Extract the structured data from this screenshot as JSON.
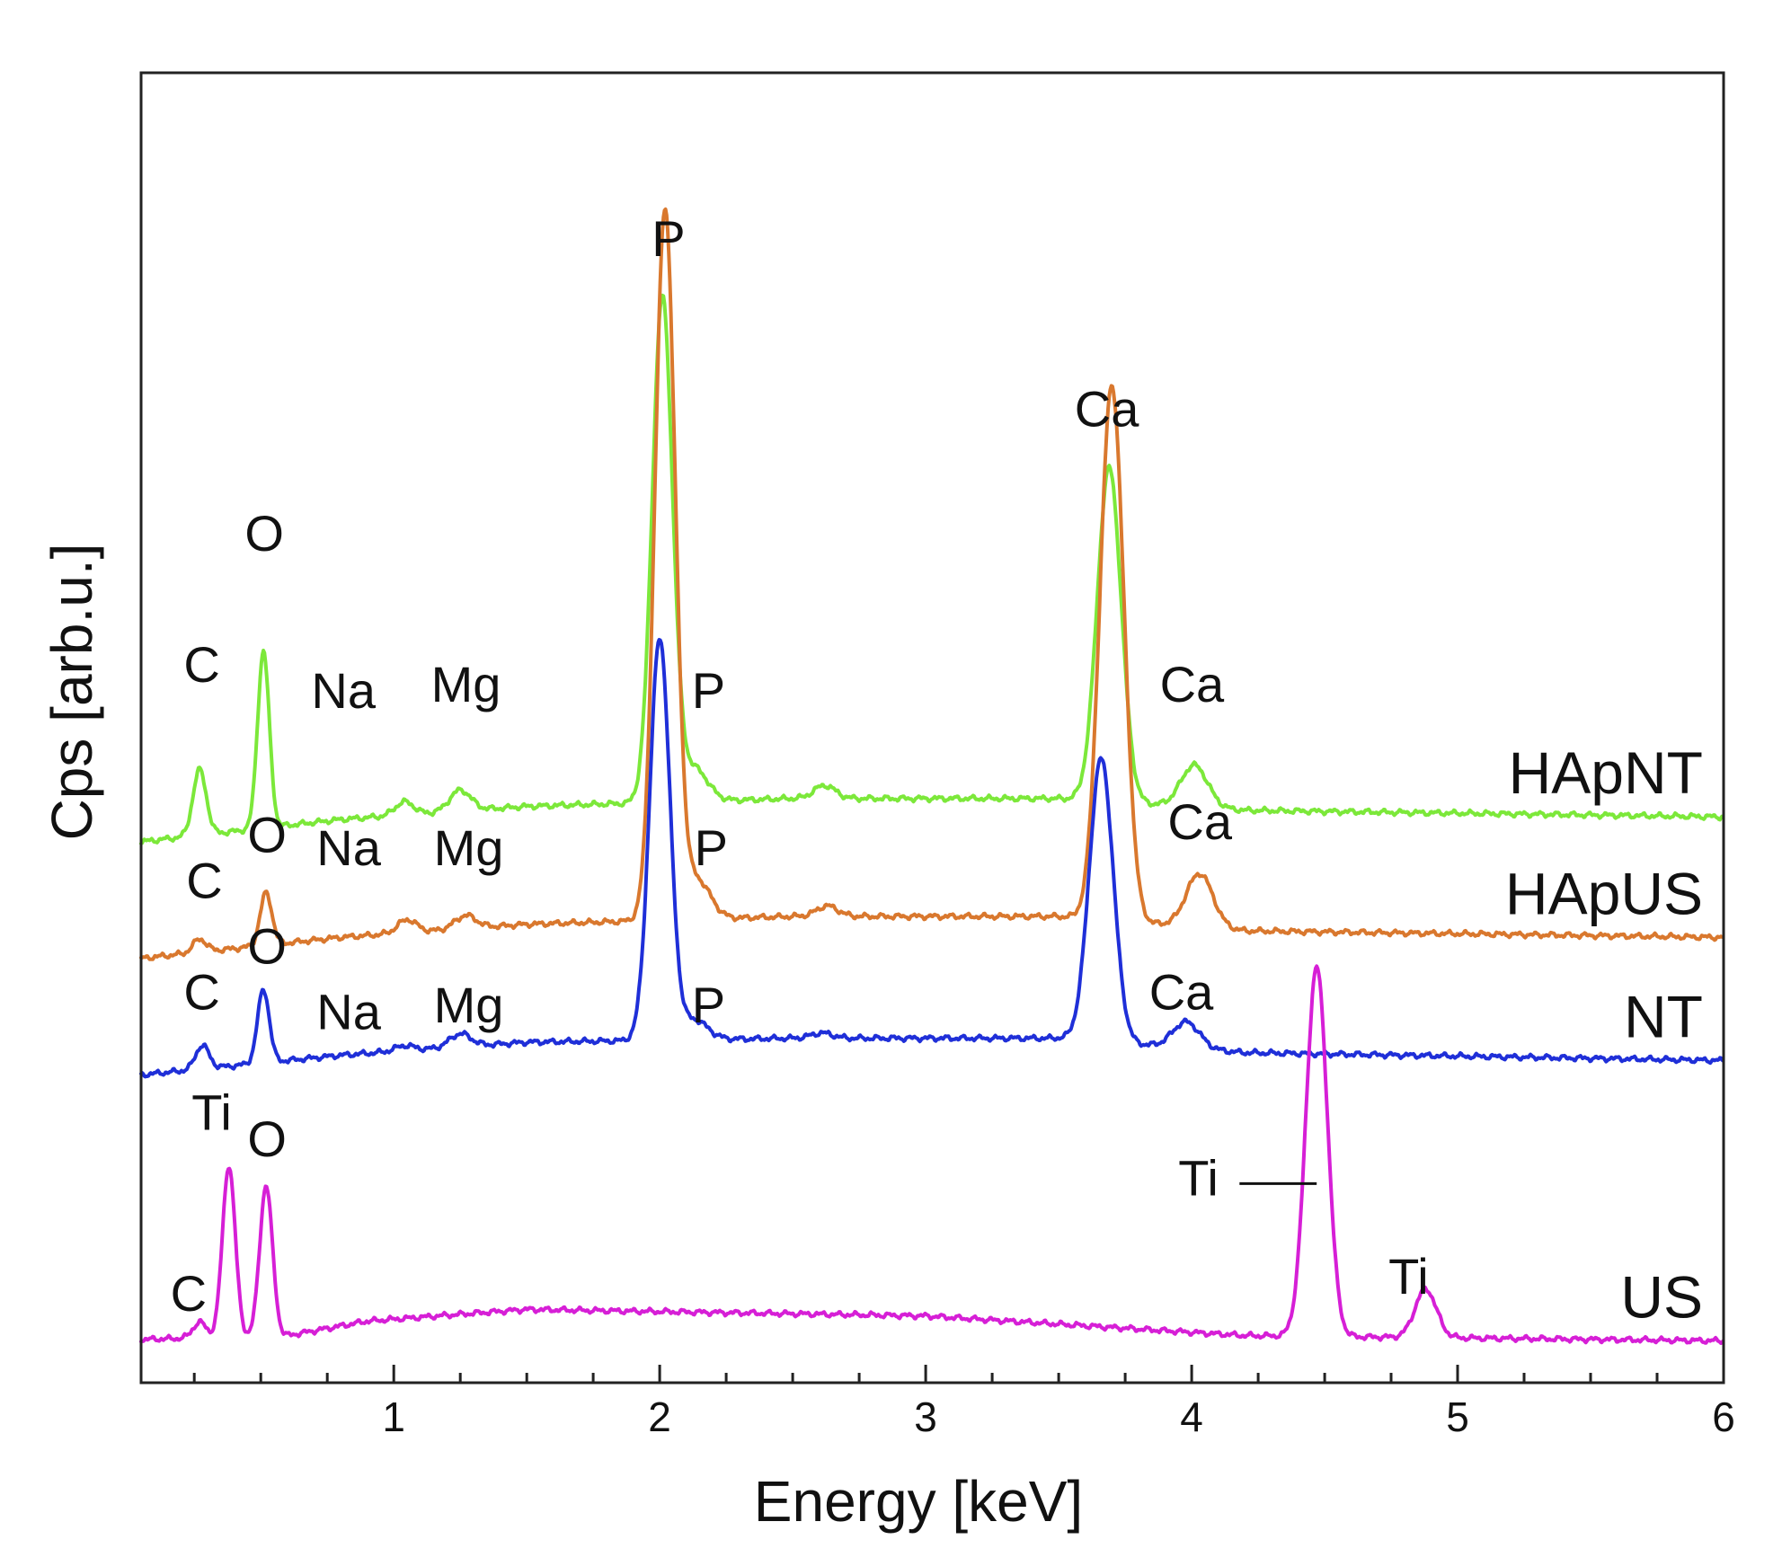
{
  "chart_data": {
    "type": "line",
    "title": "",
    "xlabel": "Energy [keV]",
    "ylabel": "Cps [arb.u.]",
    "xlim": [
      0.05,
      6.0
    ],
    "ylim": [
      0,
      100
    ],
    "x_ticks": [
      1,
      2,
      3,
      4,
      5,
      6
    ],
    "x_tick_labels": [
      "1",
      "2",
      "3",
      "4",
      "5",
      "6"
    ],
    "x_minor_step": 0.25,
    "grid": false,
    "legend": "series names printed at right end of each trace",
    "series": [
      {
        "name": "HApNT",
        "color": "#7CE83A",
        "baseline": [
          [
            0.05,
            41.3
          ],
          [
            0.8,
            43.0
          ],
          [
            1.5,
            44.0
          ],
          [
            2.5,
            44.6
          ],
          [
            3.5,
            44.6
          ],
          [
            4.2,
            43.7
          ],
          [
            6.0,
            43.2
          ]
        ],
        "peaks": [
          {
            "x": 0.27,
            "height": 5.0,
            "width": 0.025
          },
          {
            "x": 0.51,
            "height": 13.5,
            "width": 0.022
          },
          {
            "x": 1.04,
            "height": 1.0,
            "width": 0.035
          },
          {
            "x": 1.25,
            "height": 1.6,
            "width": 0.04
          },
          {
            "x": 2.01,
            "height": 38.5,
            "width": 0.038
          },
          {
            "x": 2.13,
            "height": 2.5,
            "width": 0.05
          },
          {
            "x": 2.62,
            "height": 1.0,
            "width": 0.04
          },
          {
            "x": 3.69,
            "height": 25.5,
            "width": 0.045
          },
          {
            "x": 4.01,
            "height": 3.2,
            "width": 0.05
          }
        ],
        "labels": [
          {
            "text": "C",
            "x": 0.21,
            "y": 53.5
          },
          {
            "text": "O",
            "x": 0.44,
            "y": 63.5
          },
          {
            "text": "Na",
            "x": 0.69,
            "y": 51.5
          },
          {
            "text": "Mg",
            "x": 1.14,
            "y": 52.0
          },
          {
            "text": "P",
            "x": 1.97,
            "y": 86.0
          },
          {
            "text": "P",
            "x": 2.12,
            "y": 51.5
          },
          {
            "text": "Ca",
            "x": 3.56,
            "y": 73.0
          },
          {
            "text": "Ca",
            "x": 3.88,
            "y": 52.0
          }
        ]
      },
      {
        "name": "HApUS",
        "color": "#D9782E",
        "baseline": [
          [
            0.05,
            32.4
          ],
          [
            0.8,
            34.0
          ],
          [
            1.5,
            35.0
          ],
          [
            2.5,
            35.6
          ],
          [
            3.5,
            35.6
          ],
          [
            4.2,
            34.5
          ],
          [
            6.0,
            34.0
          ]
        ],
        "peaks": [
          {
            "x": 0.27,
            "height": 1.0,
            "width": 0.025
          },
          {
            "x": 0.52,
            "height": 4.0,
            "width": 0.022
          },
          {
            "x": 1.05,
            "height": 1.0,
            "width": 0.035
          },
          {
            "x": 1.27,
            "height": 1.0,
            "width": 0.04
          },
          {
            "x": 2.02,
            "height": 54.3,
            "width": 0.038
          },
          {
            "x": 2.14,
            "height": 3.0,
            "width": 0.05
          },
          {
            "x": 2.63,
            "height": 0.8,
            "width": 0.04
          },
          {
            "x": 3.7,
            "height": 40.9,
            "width": 0.045
          },
          {
            "x": 4.03,
            "height": 4.1,
            "width": 0.05
          }
        ],
        "labels": [
          {
            "text": "C",
            "x": 0.22,
            "y": 37.0
          },
          {
            "text": "O",
            "x": 0.45,
            "y": 40.5
          },
          {
            "text": "Na",
            "x": 0.71,
            "y": 39.5
          },
          {
            "text": "Mg",
            "x": 1.15,
            "y": 39.5
          },
          {
            "text": "P",
            "x": 2.13,
            "y": 39.5
          },
          {
            "text": "Ca",
            "x": 3.91,
            "y": 41.5
          }
        ]
      },
      {
        "name": "NT",
        "color": "#1F2FD8",
        "baseline": [
          [
            0.05,
            23.5
          ],
          [
            0.8,
            25.0
          ],
          [
            1.5,
            26.0
          ],
          [
            2.5,
            26.3
          ],
          [
            3.5,
            26.3
          ],
          [
            4.2,
            25.2
          ],
          [
            6.0,
            24.6
          ]
        ],
        "peaks": [
          {
            "x": 0.28,
            "height": 1.8,
            "width": 0.025
          },
          {
            "x": 0.51,
            "height": 5.6,
            "width": 0.022
          },
          {
            "x": 1.04,
            "height": 0.4,
            "width": 0.035
          },
          {
            "x": 1.25,
            "height": 1.0,
            "width": 0.04
          },
          {
            "x": 2.0,
            "height": 30.7,
            "width": 0.038
          },
          {
            "x": 2.13,
            "height": 1.5,
            "width": 0.05
          },
          {
            "x": 2.61,
            "height": 0.4,
            "width": 0.04
          },
          {
            "x": 3.66,
            "height": 21.6,
            "width": 0.045
          },
          {
            "x": 3.98,
            "height": 2.0,
            "width": 0.05
          }
        ],
        "labels": [
          {
            "text": "C",
            "x": 0.21,
            "y": 28.5
          },
          {
            "text": "O",
            "x": 0.45,
            "y": 32.0
          },
          {
            "text": "Na",
            "x": 0.71,
            "y": 27.0
          },
          {
            "text": "Mg",
            "x": 1.15,
            "y": 27.5
          },
          {
            "text": "P",
            "x": 2.12,
            "y": 27.5
          },
          {
            "text": "Ca",
            "x": 3.84,
            "y": 28.5
          }
        ]
      },
      {
        "name": "US",
        "color": "#D61FD6",
        "baseline": [
          [
            0.05,
            3.3
          ],
          [
            0.6,
            3.6
          ],
          [
            0.9,
            4.7
          ],
          [
            1.5,
            5.6
          ],
          [
            3.0,
            5.1
          ],
          [
            4.2,
            3.6
          ],
          [
            6.0,
            3.2
          ]
        ],
        "peaks": [
          {
            "x": 0.27,
            "height": 1.2,
            "width": 0.025
          },
          {
            "x": 0.38,
            "height": 13.1,
            "width": 0.024
          },
          {
            "x": 0.52,
            "height": 11.5,
            "width": 0.024
          },
          {
            "x": 4.47,
            "height": 28.2,
            "width": 0.04
          },
          {
            "x": 4.88,
            "height": 3.7,
            "width": 0.04
          }
        ],
        "labels": [
          {
            "text": "C",
            "x": 0.16,
            "y": 5.5
          },
          {
            "text": "Ti",
            "x": 0.24,
            "y": 19.3
          },
          {
            "text": "O",
            "x": 0.45,
            "y": 17.3
          },
          {
            "text": "Ti",
            "x": 3.95,
            "y": 14.3
          },
          {
            "text": "Ti",
            "x": 4.74,
            "y": 6.8
          }
        ],
        "leader_line": {
          "x_start": 4.18,
          "x_end": 4.47,
          "y": 15.2
        }
      }
    ]
  }
}
